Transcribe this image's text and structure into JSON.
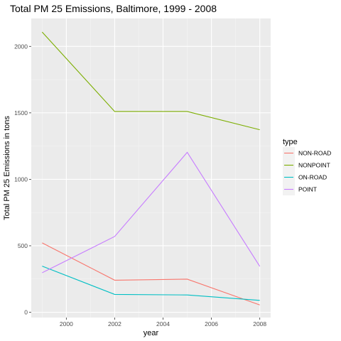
{
  "chart_data": {
    "type": "line",
    "title": "Total PM 25 Emissions, Baltimore, 1999 - 2008",
    "xlabel": "year",
    "ylabel": "Total PM 25 Emissions in tons",
    "x": [
      1999,
      2002,
      2005,
      2008
    ],
    "xlim": [
      1998.55,
      2008.45
    ],
    "ylim": [
      -40,
      2210
    ],
    "xticks": [
      2000,
      2002,
      2004,
      2006,
      2008
    ],
    "yticks": [
      0,
      500,
      1000,
      1500,
      2000
    ],
    "grid": true,
    "legend": {
      "title": "type",
      "placement": "right"
    },
    "series": [
      {
        "name": "NON-ROAD",
        "color": "#F8766D",
        "values": [
          522,
          241,
          249,
          55
        ]
      },
      {
        "name": "NONPOINT",
        "color": "#7CAE00",
        "values": [
          2108,
          1510,
          1510,
          1373
        ]
      },
      {
        "name": "ON-ROAD",
        "color": "#00BFC4",
        "values": [
          347,
          134,
          130,
          89
        ]
      },
      {
        "name": "POINT",
        "color": "#C77CFF",
        "values": [
          297,
          570,
          1203,
          345
        ]
      }
    ]
  }
}
